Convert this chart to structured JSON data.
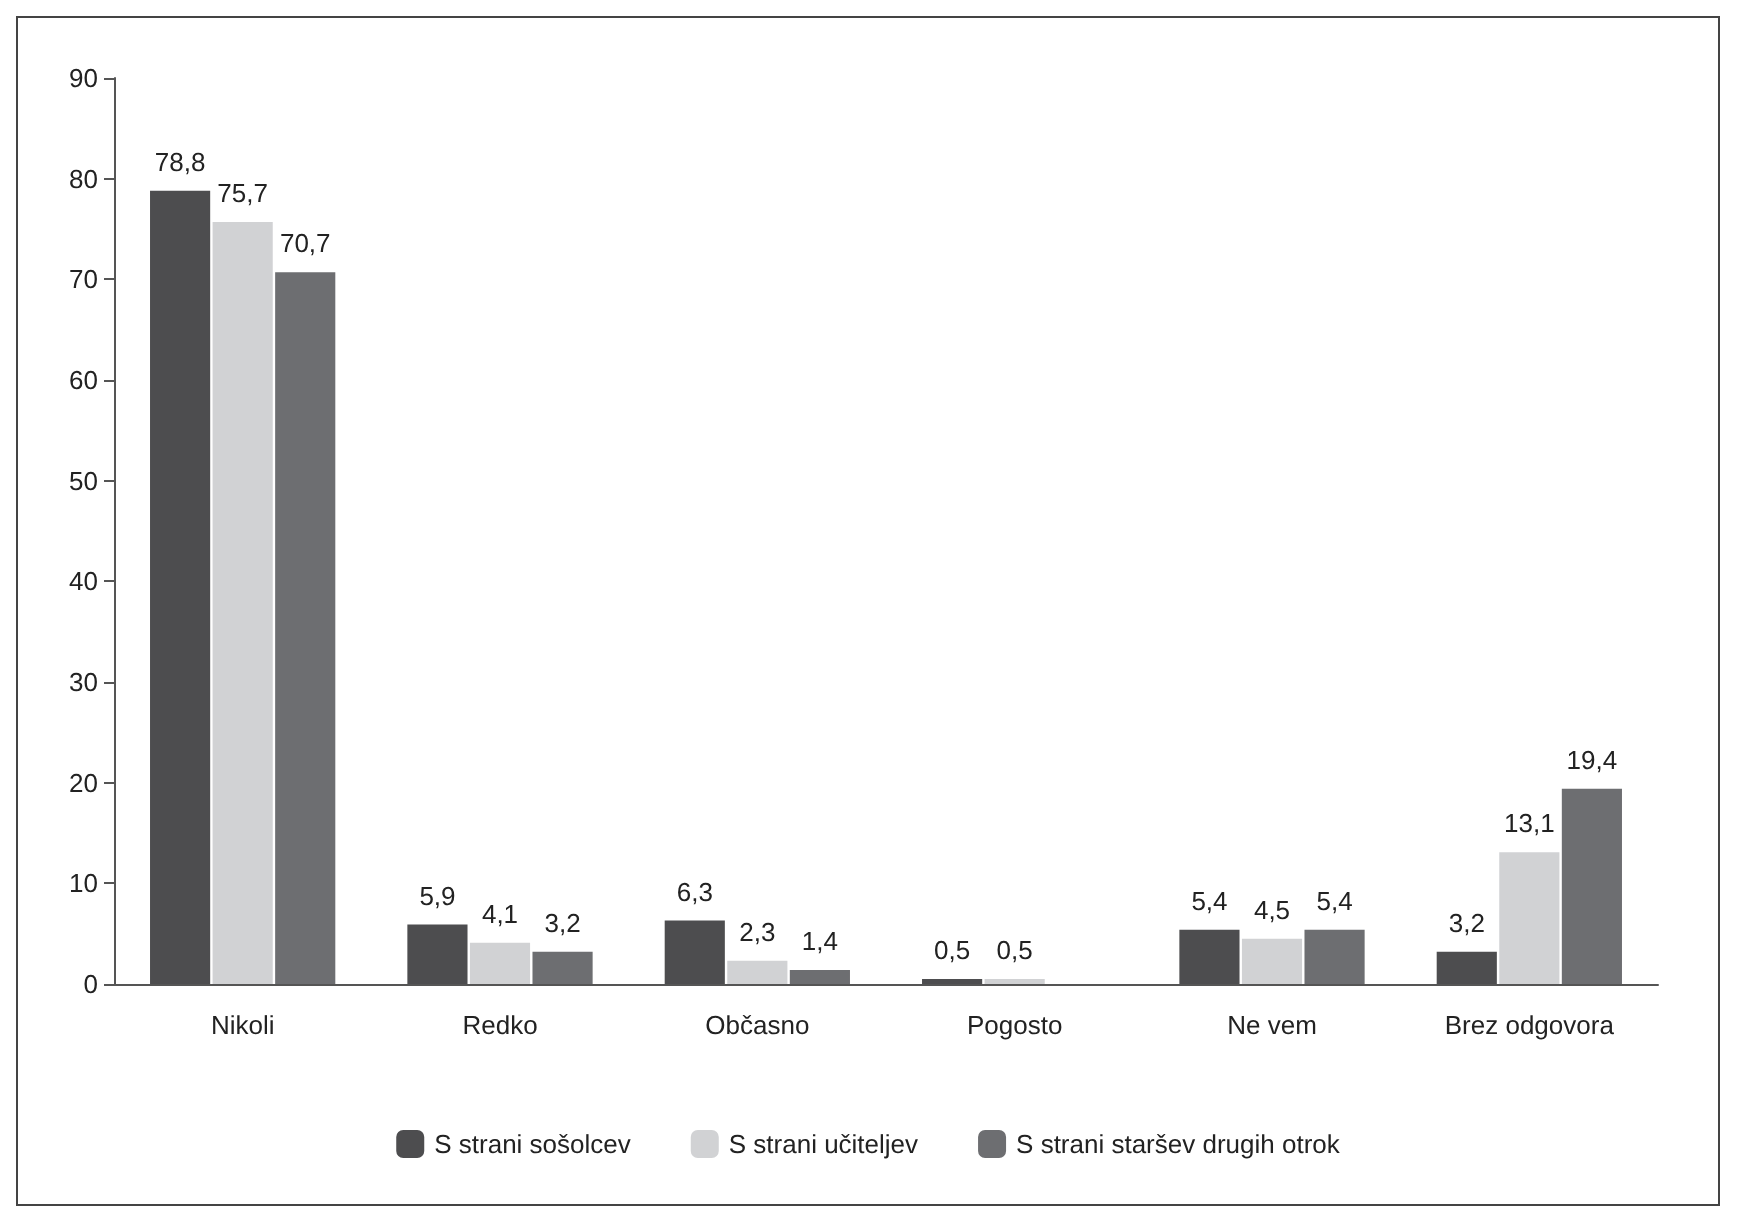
{
  "chart_data": {
    "type": "bar",
    "categories": [
      "Nikoli",
      "Redko",
      "Občasno",
      "Pogosto",
      "Ne vem",
      "Brez odgovora"
    ],
    "series": [
      {
        "name": "S strani sošolcev",
        "color": "#4d4d4f",
        "values": [
          78.8,
          5.9,
          6.3,
          0.5,
          5.4,
          3.2
        ],
        "value_labels": [
          "78,8",
          "5,9",
          "6,3",
          "0,5",
          "5,4",
          "3,2"
        ]
      },
      {
        "name": "S strani učiteljev",
        "color": "#d1d2d4",
        "values": [
          75.7,
          4.1,
          2.3,
          0.5,
          4.5,
          13.1
        ],
        "value_labels": [
          "75,7",
          "4,1",
          "2,3",
          "0,5",
          "4,5",
          "13,1"
        ]
      },
      {
        "name": "S strani staršev drugih otrok",
        "color": "#6d6e71",
        "values": [
          70.7,
          3.2,
          1.4,
          null,
          5.4,
          19.4
        ],
        "value_labels": [
          "70,7",
          "3,2",
          "1,4",
          null,
          "5,4",
          "19,4"
        ]
      }
    ],
    "ylim": [
      0,
      90
    ],
    "yticks": [
      0,
      10,
      20,
      30,
      40,
      50,
      60,
      70,
      80,
      90
    ],
    "grid": false,
    "legend": "bottom"
  }
}
